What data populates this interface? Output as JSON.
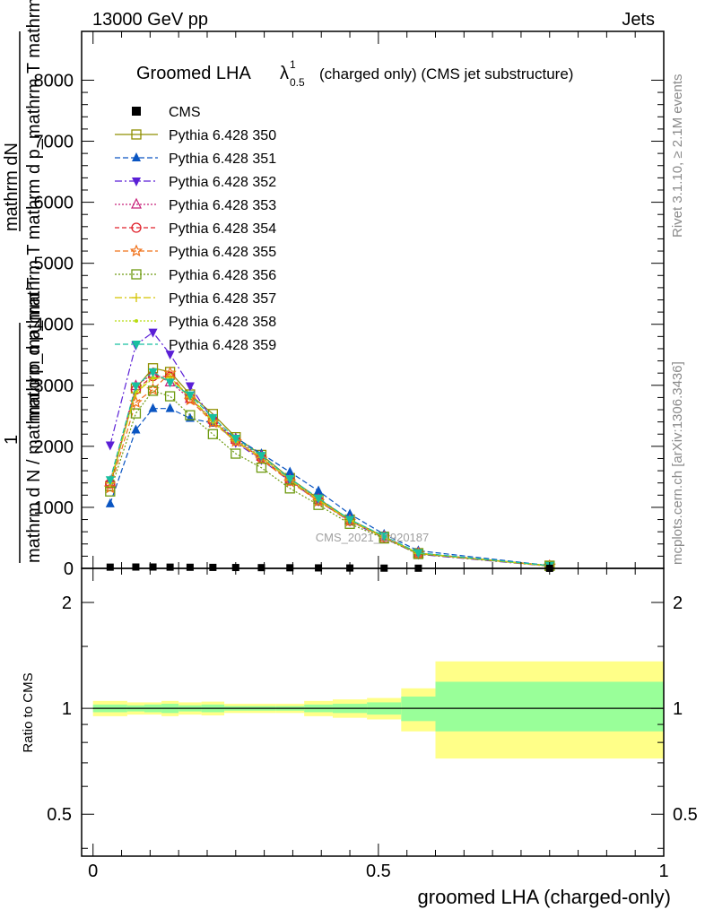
{
  "header": {
    "left": "13000 GeV pp",
    "right": "Jets"
  },
  "side": {
    "rivet": "Rivet 3.1.10, ≥ 2.1M events",
    "mcplots": "mcplots.cern.ch [arXiv:1306.3436]"
  },
  "watermark": "CMS_2021_I1920187",
  "colors": {
    "ratio_inner": "#99ff99",
    "ratio_outer": "#ffff88",
    "axis": "#000000"
  },
  "chart_data": [
    {
      "type": "line",
      "panel": "main",
      "title": "Groomed LHA",
      "title_symbol": "λ",
      "title_sup": "1",
      "title_sub": "0.5",
      "title_suffix": "(charged only) (CMS jet substructure)",
      "ylabel_numerator": "mathrm dN",
      "ylabel_denominator": "mathrm d p_mathrm T mathrm d p_mathrm T mathrm d lambda",
      "ylabel_frac_num": "1",
      "ylabel_frac_den": "mathrm d N / mathrm d p_mathrm T",
      "xlim": [
        -0.02,
        1.0
      ],
      "ylim": [
        0,
        8800
      ],
      "yticks": [
        0,
        1000,
        2000,
        3000,
        4000,
        5000,
        6000,
        7000,
        8000
      ],
      "ytick_labels": [
        "0",
        "1000",
        "2000",
        "3000",
        "4000",
        "5000",
        "6000",
        "7000",
        "8000"
      ],
      "x": [
        0.03,
        0.075,
        0.105,
        0.135,
        0.17,
        0.21,
        0.25,
        0.295,
        0.345,
        0.395,
        0.45,
        0.51,
        0.57,
        0.8
      ],
      "series": [
        {
          "name": "CMS",
          "color": "#000000",
          "dash": "",
          "marker": "square-filled",
          "values": [
            20,
            22,
            22,
            20,
            18,
            16,
            14,
            12,
            10,
            8,
            6,
            4,
            3,
            1
          ]
        },
        {
          "name": "Pythia 6.428 350",
          "color": "#8f8f00",
          "dash": "",
          "marker": "square-open",
          "values": [
            1350,
            2950,
            3280,
            3220,
            2850,
            2530,
            2150,
            1860,
            1480,
            1140,
            800,
            520,
            250,
            45
          ]
        },
        {
          "name": "Pythia 6.428 351",
          "color": "#0a55c2",
          "dash": "6,3",
          "marker": "triangle-up-filled",
          "values": [
            1060,
            2270,
            2620,
            2620,
            2460,
            2380,
            2140,
            1880,
            1580,
            1270,
            890,
            560,
            290,
            45
          ]
        },
        {
          "name": "Pythia 6.428 352",
          "color": "#5a1fd6",
          "dash": "8,3,2,3",
          "marker": "triangle-down-filled",
          "values": [
            2020,
            3660,
            3870,
            3510,
            2990,
            2430,
            2060,
            1780,
            1430,
            1100,
            770,
            500,
            230,
            35
          ]
        },
        {
          "name": "Pythia 6.428 353",
          "color": "#c8207a",
          "dash": "2,2",
          "marker": "triangle-up-open",
          "values": [
            1420,
            2990,
            3190,
            3050,
            2780,
            2440,
            2110,
            1830,
            1450,
            1130,
            790,
            520,
            250,
            40
          ]
        },
        {
          "name": "Pythia 6.428 354",
          "color": "#e0202a",
          "dash": "5,3",
          "marker": "circle-open",
          "values": [
            1390,
            2930,
            3150,
            3140,
            2790,
            2410,
            2090,
            1810,
            1440,
            1110,
            780,
            510,
            245,
            40
          ]
        },
        {
          "name": "Pythia 6.428 355",
          "color": "#f07018",
          "dash": "6,3",
          "marker": "star-open",
          "values": [
            1320,
            2720,
            2930,
            3200,
            2760,
            2390,
            2080,
            1790,
            1420,
            1100,
            775,
            505,
            240,
            40
          ]
        },
        {
          "name": "Pythia 6.428 356",
          "color": "#6e9a10",
          "dash": "2,2",
          "marker": "square-open",
          "values": [
            1260,
            2540,
            2910,
            2820,
            2510,
            2200,
            1880,
            1650,
            1310,
            1040,
            730,
            490,
            235,
            40
          ]
        },
        {
          "name": "Pythia 6.428 357",
          "color": "#d4c400",
          "dash": "8,3,2,3",
          "marker": "cross",
          "values": [
            1400,
            2880,
            3110,
            3130,
            2810,
            2420,
            2090,
            1820,
            1450,
            1120,
            780,
            510,
            245,
            40
          ]
        },
        {
          "name": "Pythia 6.428 358",
          "color": "#b8dc10",
          "dash": "2,2",
          "marker": "dot",
          "values": [
            1410,
            2900,
            3130,
            3100,
            2800,
            2400,
            2080,
            1820,
            1450,
            1120,
            790,
            515,
            250,
            40
          ]
        },
        {
          "name": "Pythia 6.428 359",
          "color": "#18c0a0",
          "dash": "6,3",
          "marker": "triangle-down-filled",
          "values": [
            1450,
            2990,
            3220,
            3050,
            2840,
            2470,
            2130,
            1850,
            1470,
            1150,
            800,
            530,
            255,
            45
          ]
        }
      ]
    },
    {
      "type": "area",
      "panel": "ratio",
      "ylabel": "Ratio to CMS",
      "xlabel": "groomed LHA (charged-only)",
      "xlim": [
        -0.02,
        1.0
      ],
      "ylim": [
        0.38,
        2.5
      ],
      "yscale": "log",
      "xticks": [
        0,
        0.5,
        1
      ],
      "xtick_labels": [
        "0",
        "0.5",
        "1"
      ],
      "yticks": [
        0.5,
        1,
        2
      ],
      "ytick_labels": [
        "0.5",
        "1",
        "2"
      ],
      "bins": [
        {
          "x": [
            0.0,
            0.06
          ],
          "inner": [
            0.975,
            1.025
          ],
          "outer": [
            0.95,
            1.05
          ]
        },
        {
          "x": [
            0.06,
            0.09
          ],
          "inner": [
            0.98,
            1.02
          ],
          "outer": [
            0.96,
            1.04
          ]
        },
        {
          "x": [
            0.09,
            0.12
          ],
          "inner": [
            0.975,
            1.025
          ],
          "outer": [
            0.96,
            1.04
          ]
        },
        {
          "x": [
            0.12,
            0.15
          ],
          "inner": [
            0.97,
            1.03
          ],
          "outer": [
            0.95,
            1.05
          ]
        },
        {
          "x": [
            0.15,
            0.19
          ],
          "inner": [
            0.98,
            1.02
          ],
          "outer": [
            0.96,
            1.04
          ]
        },
        {
          "x": [
            0.19,
            0.23
          ],
          "inner": [
            0.975,
            1.025
          ],
          "outer": [
            0.955,
            1.045
          ]
        },
        {
          "x": [
            0.23,
            0.27
          ],
          "inner": [
            0.985,
            1.015
          ],
          "outer": [
            0.97,
            1.03
          ]
        },
        {
          "x": [
            0.27,
            0.32
          ],
          "inner": [
            0.985,
            1.015
          ],
          "outer": [
            0.97,
            1.03
          ]
        },
        {
          "x": [
            0.32,
            0.37
          ],
          "inner": [
            0.985,
            1.015
          ],
          "outer": [
            0.97,
            1.03
          ]
        },
        {
          "x": [
            0.37,
            0.42
          ],
          "inner": [
            0.975,
            1.025
          ],
          "outer": [
            0.95,
            1.05
          ]
        },
        {
          "x": [
            0.42,
            0.48
          ],
          "inner": [
            0.97,
            1.03
          ],
          "outer": [
            0.94,
            1.06
          ]
        },
        {
          "x": [
            0.48,
            0.54
          ],
          "inner": [
            0.96,
            1.04
          ],
          "outer": [
            0.93,
            1.07
          ]
        },
        {
          "x": [
            0.54,
            0.6
          ],
          "inner": [
            0.92,
            1.08
          ],
          "outer": [
            0.86,
            1.14
          ]
        },
        {
          "x": [
            0.6,
            1.0
          ],
          "inner": [
            0.86,
            1.19
          ],
          "outer": [
            0.72,
            1.36
          ]
        }
      ],
      "reference": 1
    }
  ]
}
